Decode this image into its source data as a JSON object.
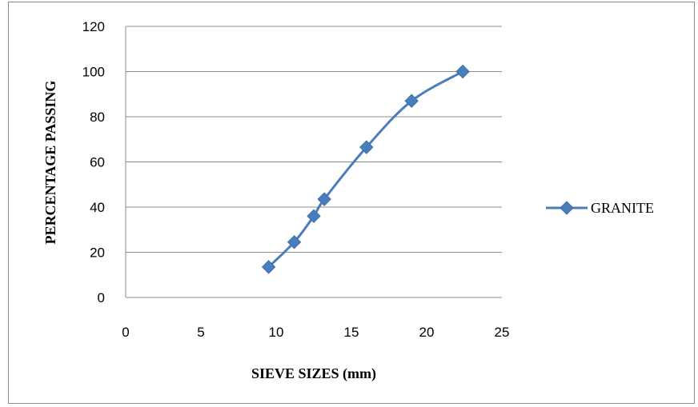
{
  "chart_data": {
    "type": "line",
    "title": "",
    "xlabel": "SIEVE SIZES (mm)",
    "ylabel": "PERCENTAGE PASSING",
    "xlim": [
      0,
      25
    ],
    "ylim": [
      0,
      120
    ],
    "xticks": [
      0,
      5,
      10,
      15,
      20,
      25
    ],
    "yticks": [
      0,
      20,
      40,
      60,
      80,
      100,
      120
    ],
    "grid": "horizontal",
    "legend": "right",
    "series": [
      {
        "name": "GRANITE",
        "color": "#4a7ebb",
        "marker": "diamond",
        "smooth": true,
        "x": [
          9.5,
          11.2,
          12.5,
          13.2,
          16,
          19,
          22.4
        ],
        "y": [
          13.5,
          24.5,
          36,
          43.5,
          66.5,
          87,
          100
        ]
      }
    ]
  }
}
